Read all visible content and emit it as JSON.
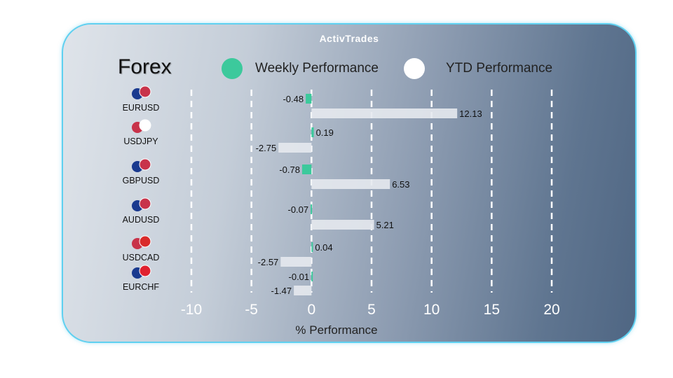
{
  "brand": "ActivTrades",
  "title": "Forex",
  "colors": {
    "weekly": "#3cc99c",
    "ytd": "#e6e9ee"
  },
  "chart_data": {
    "type": "bar",
    "orientation": "horizontal",
    "categories": [
      "EURUSD",
      "USDJPY",
      "GBPUSD",
      "AUDUSD",
      "USDCAD",
      "EURCHF"
    ],
    "series": [
      {
        "name": "Weekly Performance",
        "values": [
          -0.48,
          0.19,
          -0.78,
          -0.07,
          0.04,
          -0.01
        ]
      },
      {
        "name": "YTD Performance",
        "values": [
          12.13,
          -2.75,
          6.53,
          5.21,
          -2.57,
          -1.47
        ]
      }
    ],
    "xlabel": "% Performance",
    "xlim": [
      -10,
      20
    ],
    "xticks": [
      "-10",
      "-5",
      "0",
      "5",
      "10",
      "15",
      "20"
    ],
    "grid": "vertical dashed",
    "legend": "top"
  }
}
